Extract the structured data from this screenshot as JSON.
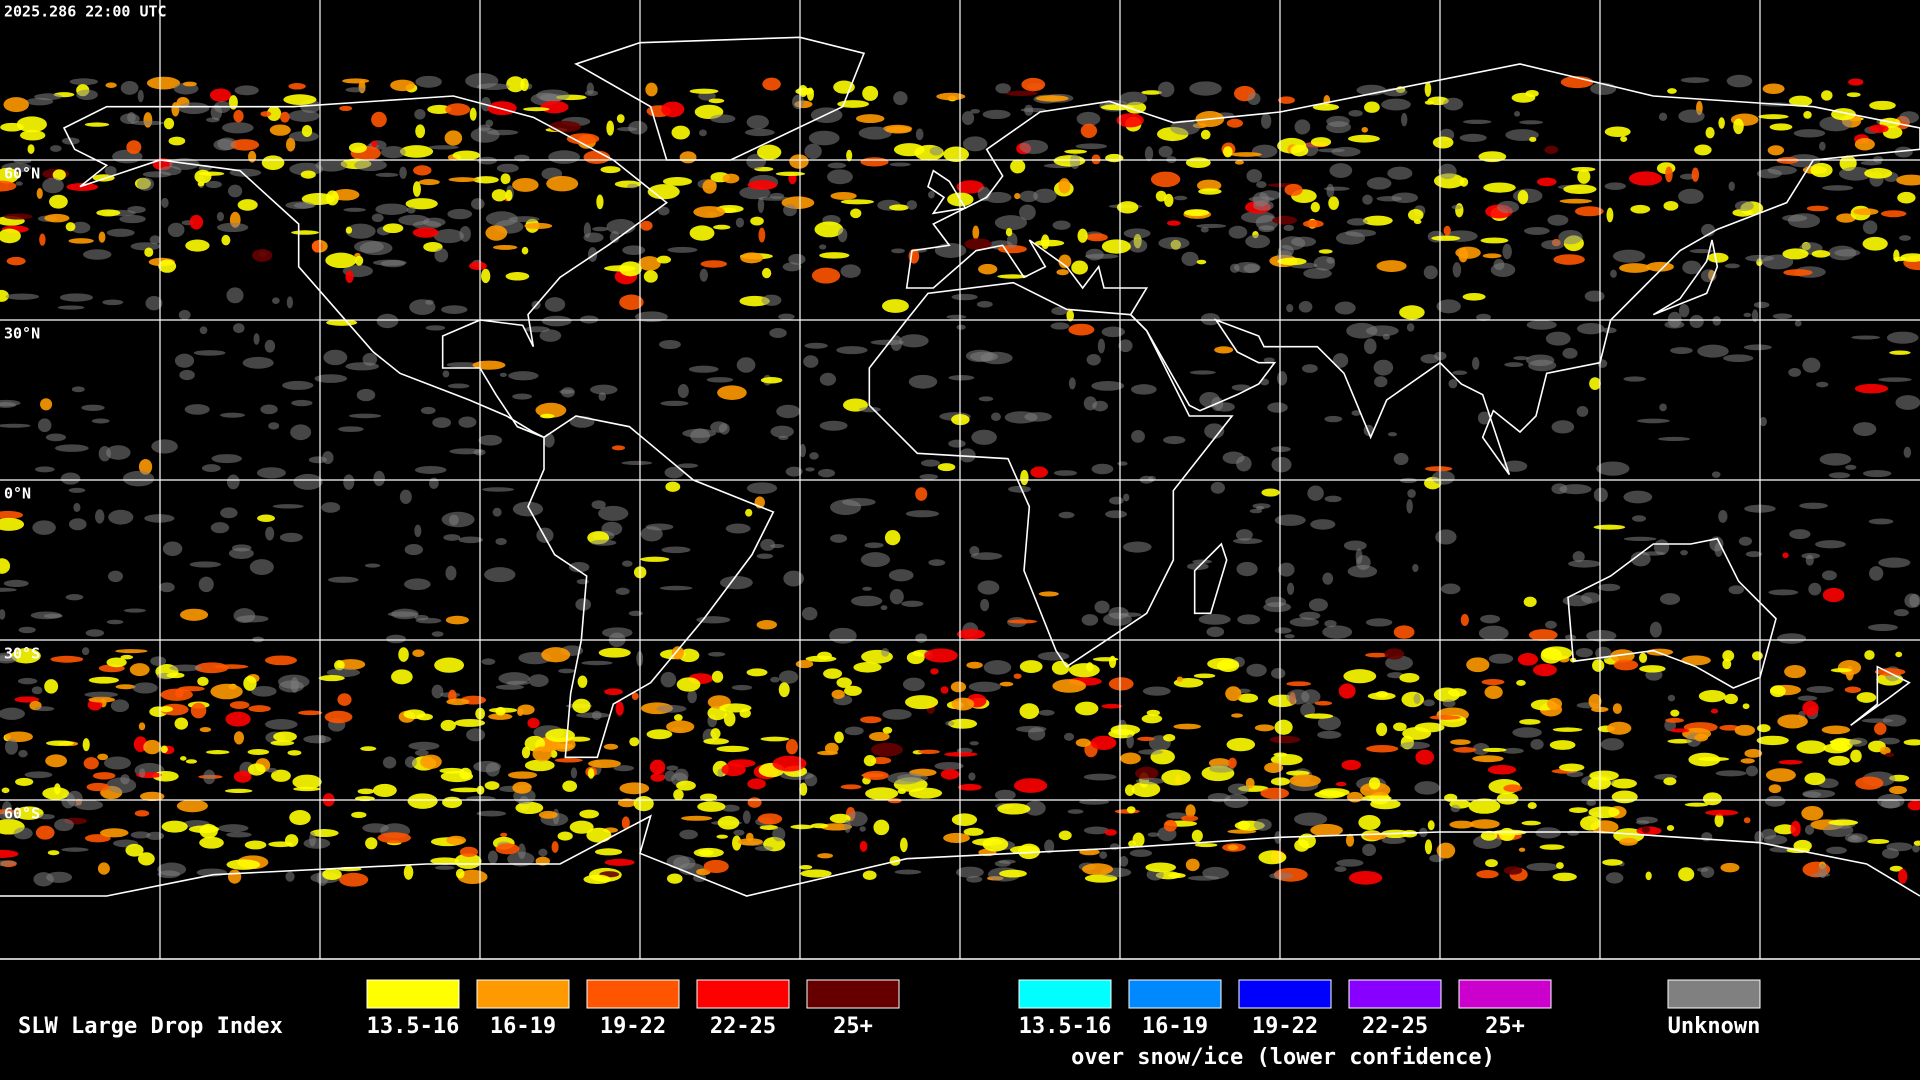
{
  "timestamp": "2025.286 22:00 UTC",
  "latitude_labels": [
    "60°N",
    "30°N",
    "0°N",
    "30°S",
    "60°S"
  ],
  "legend": {
    "title": "SLW Large Drop Index",
    "items": [
      {
        "label": "13.5-16",
        "color": "#ffff00"
      },
      {
        "label": "16-19",
        "color": "#ff9900"
      },
      {
        "label": "19-22",
        "color": "#ff5500"
      },
      {
        "label": "22-25",
        "color": "#ff0000"
      },
      {
        "label": "25+",
        "color": "#660000"
      }
    ],
    "snow_ice_items": [
      {
        "label": "13.5-16",
        "color": "#00ffff"
      },
      {
        "label": "16-19",
        "color": "#0088ff"
      },
      {
        "label": "19-22",
        "color": "#0000ff"
      },
      {
        "label": "22-25",
        "color": "#8800ff"
      },
      {
        "label": "25+",
        "color": "#cc00cc"
      }
    ],
    "snow_ice_caption": "over snow/ice (lower confidence)",
    "unknown": {
      "label": "Unknown",
      "color": "#808080"
    }
  }
}
